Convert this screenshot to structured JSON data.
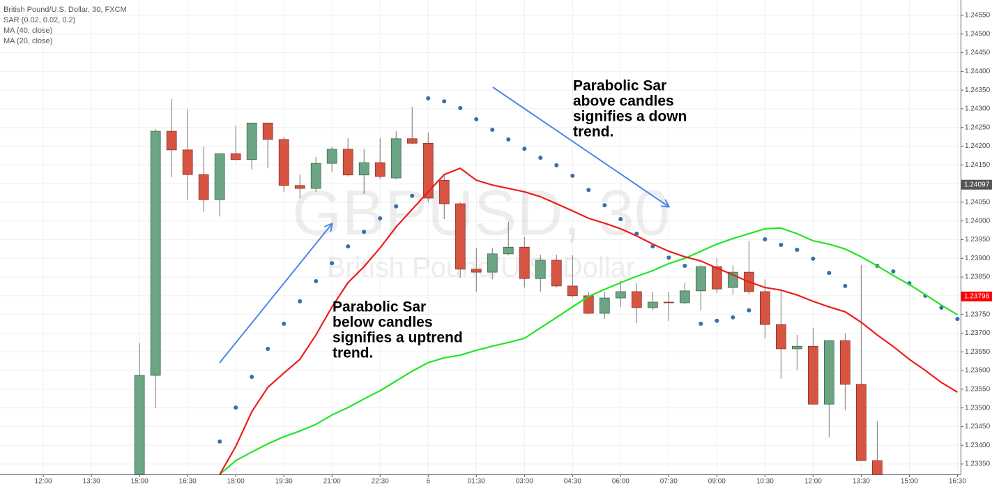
{
  "chart_data": {
    "type": "candlestick",
    "title": "British Pound/U.S. Dollar, 30, FXCM",
    "watermark": [
      "GBPUSD, 30",
      "British Pound/U.S. Dollar"
    ],
    "grid": true,
    "up_color": "#6ba583",
    "down_color": "#d75442",
    "wick_color": "#737375",
    "xlim": [
      -2.7,
      57.2
    ],
    "xticks": [
      {
        "value": 0,
        "label": "12:00"
      },
      {
        "value": 3,
        "label": "13:30"
      },
      {
        "value": 6,
        "label": "15:00"
      },
      {
        "value": 9,
        "label": "16:30"
      },
      {
        "value": 12,
        "label": "18:00"
      },
      {
        "value": 15,
        "label": "19:30"
      },
      {
        "value": 18,
        "label": "21:00"
      },
      {
        "value": 21,
        "label": "22:30"
      },
      {
        "value": 24,
        "label": "6"
      },
      {
        "value": 27,
        "label": "01:30"
      },
      {
        "value": 30,
        "label": "03:00"
      },
      {
        "value": 33,
        "label": "04:30"
      },
      {
        "value": 36,
        "label": "06:00"
      },
      {
        "value": 39,
        "label": "07:30"
      },
      {
        "value": 42,
        "label": "09:00"
      },
      {
        "value": 45,
        "label": "10:30"
      },
      {
        "value": 48,
        "label": "12:00"
      },
      {
        "value": 51,
        "label": "13:30"
      },
      {
        "value": 54,
        "label": "15:00"
      },
      {
        "value": 57,
        "label": "16:30"
      }
    ],
    "ylim": [
      1.23322,
      1.24591
    ],
    "yticks": [
      {
        "value": 1.2335,
        "label": "1.23350"
      },
      {
        "value": 1.234,
        "label": "1.23400"
      },
      {
        "value": 1.2345,
        "label": "1.23450"
      },
      {
        "value": 1.235,
        "label": "1.23500"
      },
      {
        "value": 1.2355,
        "label": "1.23550"
      },
      {
        "value": 1.236,
        "label": "1.23600"
      },
      {
        "value": 1.2365,
        "label": "1.23650"
      },
      {
        "value": 1.237,
        "label": "1.23700"
      },
      {
        "value": 1.2375,
        "label": "1.23750"
      },
      {
        "value": 1.238,
        "label": "1.23800"
      },
      {
        "value": 1.2385,
        "label": "1.23850"
      },
      {
        "value": 1.239,
        "label": "1.23900"
      },
      {
        "value": 1.2395,
        "label": "1.23950"
      },
      {
        "value": 1.24,
        "label": "1.24000"
      },
      {
        "value": 1.2405,
        "label": "1.24050"
      },
      {
        "value": 1.241,
        "label": "1.24100"
      },
      {
        "value": 1.2415,
        "label": "1.24150"
      },
      {
        "value": 1.242,
        "label": "1.24200"
      },
      {
        "value": 1.2425,
        "label": "1.24250"
      },
      {
        "value": 1.243,
        "label": "1.24300"
      },
      {
        "value": 1.2435,
        "label": "1.24350"
      },
      {
        "value": 1.244,
        "label": "1.24400"
      },
      {
        "value": 1.2445,
        "label": "1.24450"
      },
      {
        "value": 1.245,
        "label": "1.24500"
      },
      {
        "value": 1.2455,
        "label": "1.24550"
      }
    ],
    "x": [
      6,
      7,
      8,
      9,
      10,
      11,
      12,
      13,
      14,
      15,
      16,
      17,
      18,
      19,
      20,
      21,
      22,
      23,
      24,
      25,
      26,
      27,
      28,
      29,
      30,
      31,
      32,
      33,
      34,
      35,
      36,
      37,
      38,
      39,
      40,
      41,
      42,
      43,
      44,
      45,
      46,
      47,
      48,
      49,
      50,
      51,
      52,
      53,
      54,
      55,
      56,
      57
    ],
    "open": [
      1.23275,
      1.23587,
      1.2424,
      1.2419,
      1.24124,
      1.24057,
      1.2418,
      1.24164,
      1.24262,
      1.24218,
      1.24095,
      1.24087,
      1.24154,
      1.24192,
      1.24123,
      1.24156,
      1.24115,
      1.2422,
      1.24208,
      1.24109,
      1.24046,
      1.23871,
      1.23863,
      1.23912,
      1.2393,
      1.23846,
      1.23895,
      1.23826,
      1.238,
      1.23753,
      1.23794,
      1.23811,
      1.23768,
      1.23783,
      1.23781,
      1.23813,
      1.23878,
      1.23822,
      1.23863,
      1.23811,
      1.23723,
      1.23658,
      1.23665,
      1.2351,
      1.2368,
      1.23563,
      1.23359,
      null,
      null,
      null,
      null,
      null
    ],
    "high": [
      1.23673,
      1.24246,
      1.24326,
      1.24298,
      1.24199,
      1.2418,
      1.24255,
      1.24262,
      1.24262,
      1.24225,
      1.24124,
      1.24171,
      1.24199,
      1.24221,
      1.24192,
      1.24221,
      1.2424,
      1.24305,
      1.24236,
      1.24124,
      1.2405,
      1.23928,
      1.23928,
      1.23998,
      1.23957,
      1.2391,
      1.2391,
      1.23908,
      1.23811,
      1.23811,
      1.23839,
      1.23833,
      1.23811,
      1.23811,
      1.23835,
      1.23882,
      1.239,
      1.23882,
      1.23947,
      1.23844,
      1.23815,
      1.23695,
      1.23714,
      1.2368,
      1.23699,
      1.23882,
      1.23464,
      null,
      null,
      null,
      null,
      null
    ],
    "low": [
      1.2326,
      1.23499,
      1.24117,
      1.24057,
      1.24025,
      1.24012,
      1.24162,
      1.24137,
      1.24141,
      1.24078,
      1.24061,
      1.24078,
      1.24132,
      1.24119,
      1.24072,
      1.24113,
      1.24111,
      1.24206,
      1.2405,
      1.24005,
      1.23848,
      1.23811,
      1.23844,
      1.23908,
      1.23822,
      1.23811,
      1.23822,
      1.23796,
      1.23751,
      1.23738,
      1.2377,
      1.23727,
      1.23761,
      1.23733,
      1.23777,
      1.23761,
      1.23807,
      1.23803,
      1.23803,
      1.23686,
      1.23578,
      1.23602,
      1.23509,
      1.23421,
      1.23494,
      1.23359,
      1.23303,
      null,
      null,
      null,
      null,
      null
    ],
    "close": [
      1.23587,
      1.2424,
      1.2419,
      1.24124,
      1.24057,
      1.2418,
      1.24164,
      1.24262,
      1.24218,
      1.24095,
      1.24087,
      1.24154,
      1.24192,
      1.24123,
      1.24156,
      1.24119,
      1.2422,
      1.24208,
      1.24061,
      1.24046,
      1.23871,
      1.23863,
      1.23912,
      1.2393,
      1.23846,
      1.23895,
      1.23826,
      1.238,
      1.23753,
      1.23794,
      1.23811,
      1.23768,
      1.23783,
      1.23781,
      1.23813,
      1.23878,
      1.23818,
      1.23863,
      1.23811,
      1.23723,
      1.23658,
      1.23665,
      1.2351,
      1.2368,
      1.23563,
      1.23359,
      1.23303,
      null,
      null,
      null,
      null,
      null
    ],
    "series": [
      {
        "name": "SAR (0.02, 0.02, 0.2)",
        "style": "dots",
        "color": "#3a6ea5",
        "values": [
          null,
          null,
          null,
          null,
          null,
          1.2341,
          1.23501,
          1.23583,
          1.23658,
          1.23725,
          1.23785,
          1.23839,
          1.23887,
          1.23932,
          1.23971,
          1.24007,
          1.24039,
          1.24067,
          1.24328,
          1.2432,
          1.24302,
          1.24272,
          1.24244,
          1.24218,
          1.24193,
          1.24169,
          1.24149,
          1.24121,
          1.24083,
          1.24042,
          1.24005,
          1.23966,
          1.23932,
          1.23902,
          1.2388,
          1.23725,
          1.23733,
          1.23742,
          1.23761,
          1.23951,
          1.23936,
          1.23923,
          1.23899,
          1.23861,
          1.23826,
          null,
          1.2388,
          1.23865,
          1.23833,
          1.238,
          1.23768,
          1.23738
        ]
      },
      {
        "name": "MA (40, close)",
        "style": "line",
        "color": "#22e622",
        "values": [
          null,
          null,
          null,
          null,
          null,
          1.23322,
          1.23359,
          1.23382,
          1.23404,
          1.23423,
          1.23438,
          1.23456,
          1.23481,
          1.23501,
          1.23524,
          1.23546,
          1.23572,
          1.23598,
          1.23621,
          1.23634,
          1.23641,
          1.23654,
          1.23665,
          1.23675,
          1.23686,
          1.23714,
          1.23742,
          1.2377,
          1.23798,
          1.23817,
          1.23835,
          1.23852,
          1.23867,
          1.23886,
          1.239,
          1.23919,
          1.23938,
          1.23953,
          1.23966,
          1.23979,
          1.23981,
          1.23966,
          1.23947,
          1.23938,
          1.23925,
          1.23904,
          1.2388,
          1.23854,
          1.2383,
          1.23803,
          1.23775,
          1.23749
        ]
      },
      {
        "name": "MA (20, close)",
        "style": "line",
        "color": "#ee1c1c",
        "values": [
          null,
          null,
          null,
          null,
          null,
          1.23322,
          1.23397,
          1.2349,
          1.23555,
          1.23593,
          1.2363,
          1.23695,
          1.2377,
          1.23835,
          1.23878,
          1.23928,
          1.23984,
          1.24031,
          1.24078,
          1.24124,
          1.24141,
          1.24109,
          1.24096,
          1.24087,
          1.24078,
          1.24065,
          1.24046,
          1.24027,
          1.24007,
          1.23994,
          1.23979,
          1.2396,
          1.23938,
          1.23919,
          1.23904,
          1.23893,
          1.23874,
          1.23856,
          1.23837,
          1.23822,
          1.23815,
          1.23802,
          1.23785,
          1.2377,
          1.23757,
          1.23729,
          1.23695,
          1.23664,
          1.2363,
          1.236,
          1.23568,
          1.23542
        ]
      }
    ],
    "price_tags": [
      {
        "value": 1.24097,
        "color": "#555555"
      },
      {
        "value": 1.23798,
        "color": "#ff0000"
      }
    ],
    "annotations": [
      {
        "lines": [
          "Parabolic Sar",
          "below candles",
          "signifies a uptrend",
          "trend."
        ]
      },
      {
        "lines": [
          "Parabolic Sar",
          "above candles",
          "signifies a down",
          "trend."
        ]
      }
    ]
  }
}
